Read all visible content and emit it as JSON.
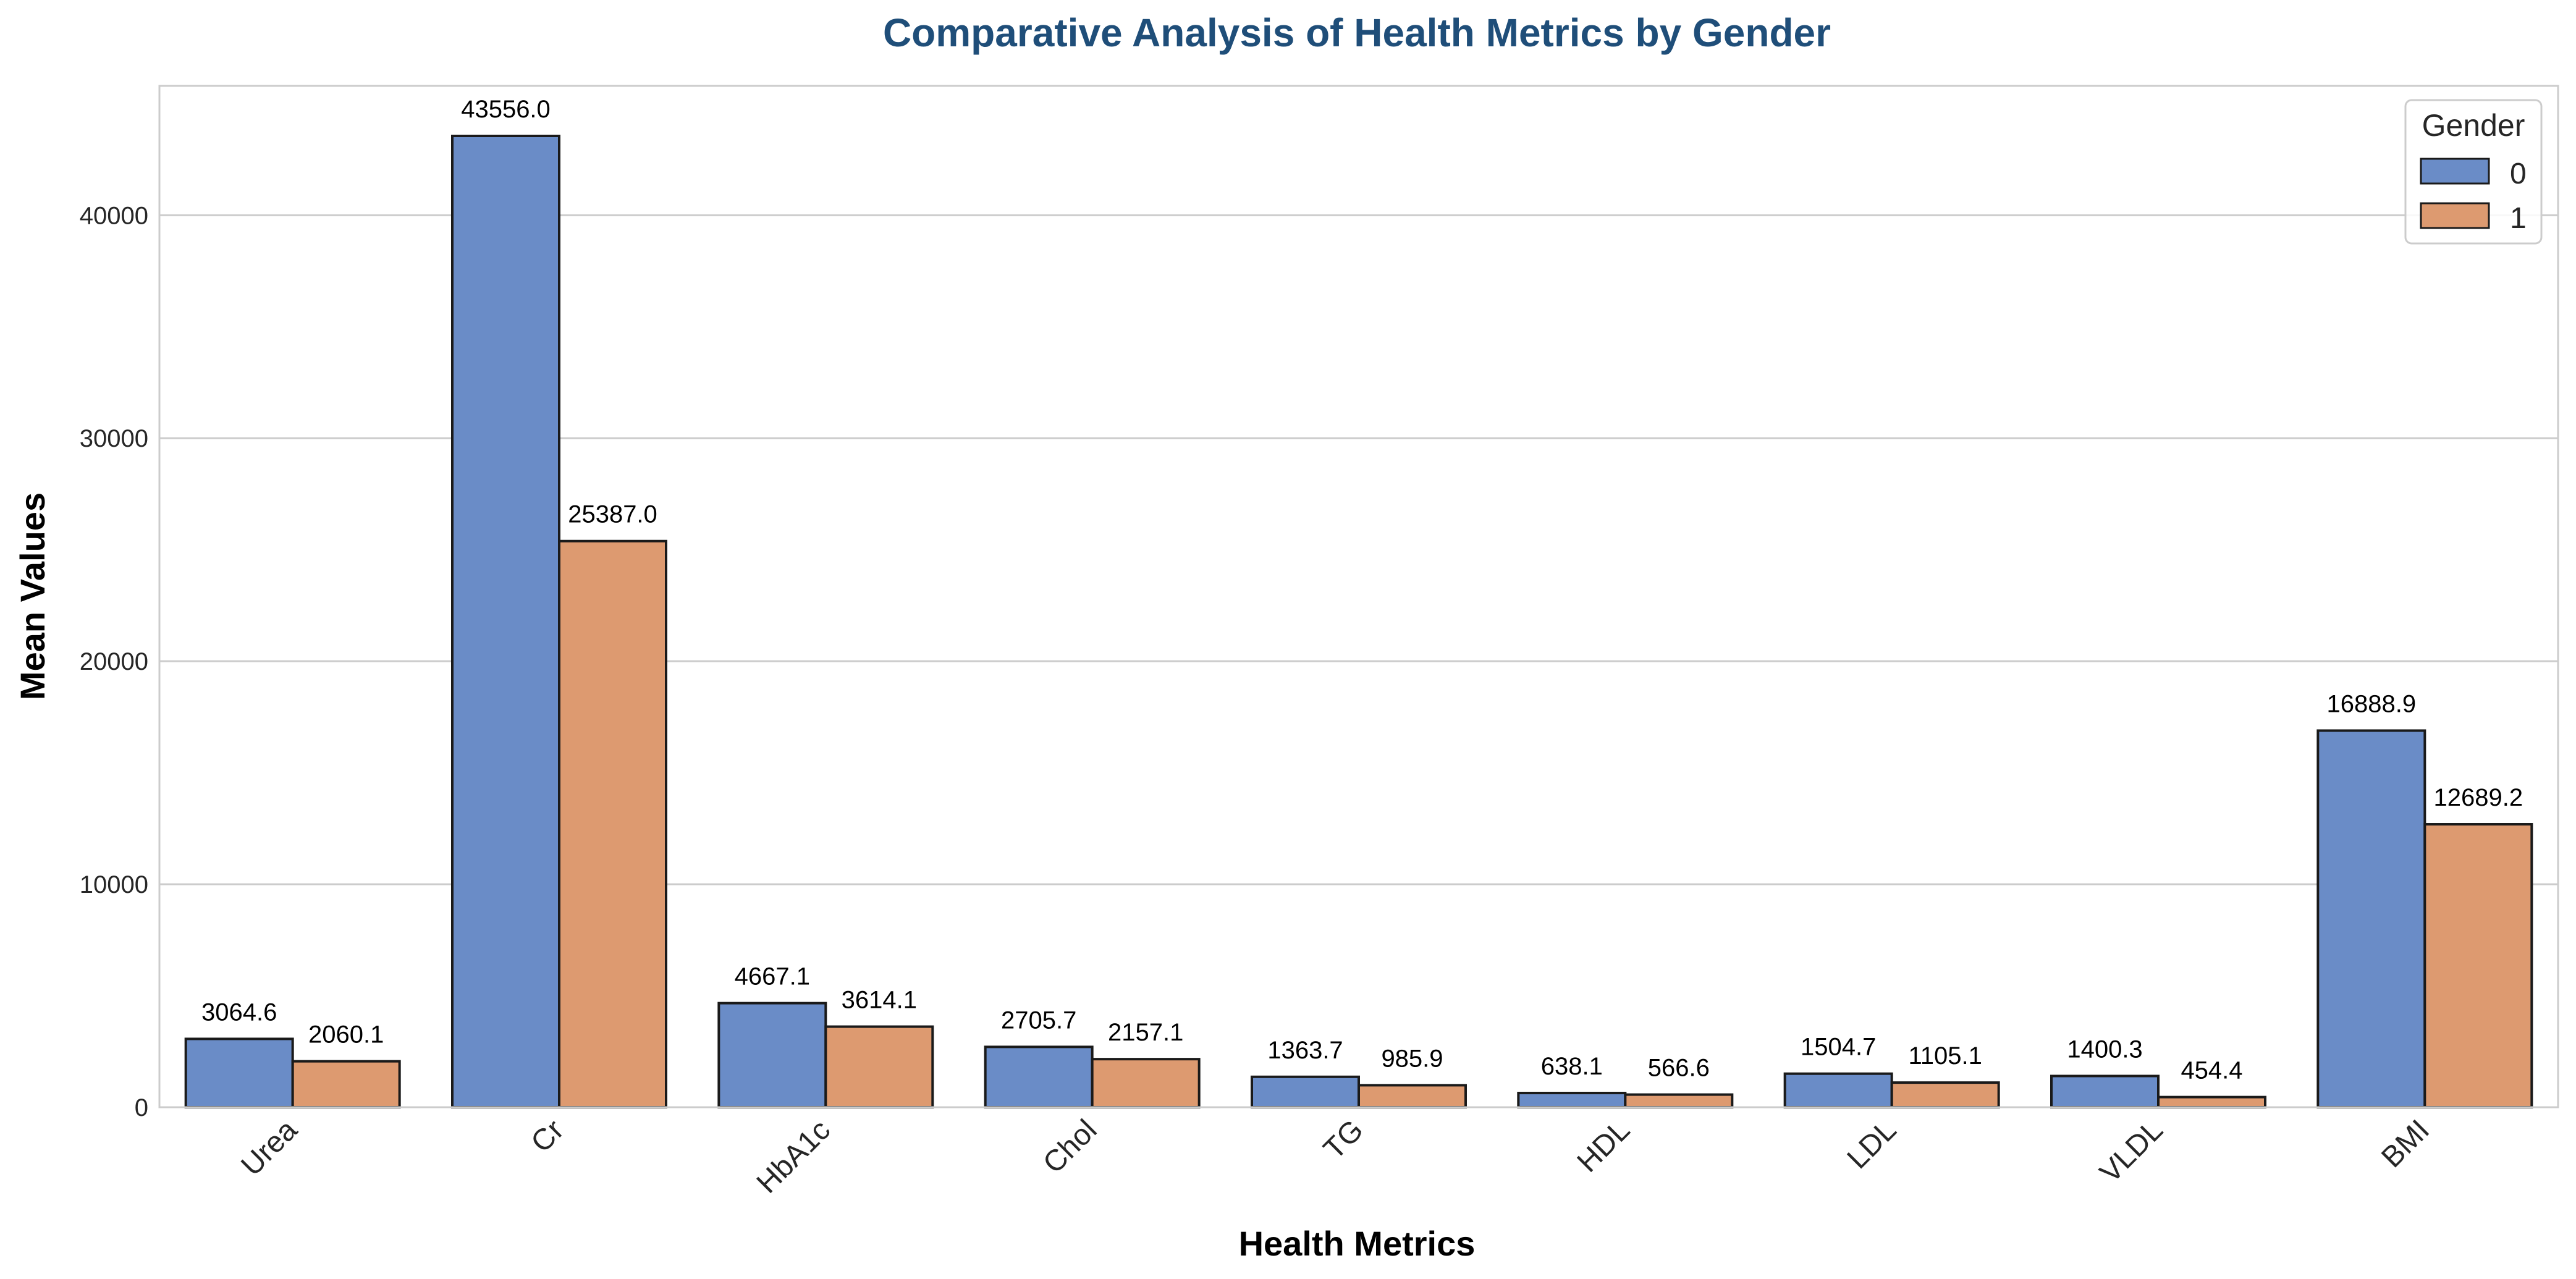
{
  "chart_data": {
    "type": "bar",
    "title": "Comparative Analysis of Health Metrics by Gender",
    "xlabel": "Health Metrics",
    "ylabel": "Mean Values",
    "categories": [
      "Urea",
      "Cr",
      "HbA1c",
      "Chol",
      "TG",
      "HDL",
      "LDL",
      "VLDL",
      "BMI"
    ],
    "series": [
      {
        "name": "0",
        "values": [
          3064.6,
          43556.0,
          4667.1,
          2705.7,
          1363.7,
          638.1,
          1504.7,
          1400.3,
          16888.9
        ],
        "labels": [
          "3064.6",
          "43556.0",
          "4667.1",
          "2705.7",
          "1363.7",
          "638.1",
          "1504.7",
          "1400.3",
          "16888.9"
        ],
        "color": "#6a8cc7"
      },
      {
        "name": "1",
        "values": [
          2060.1,
          25387.0,
          3614.1,
          2157.1,
          985.9,
          566.6,
          1105.1,
          454.4,
          12689.2
        ],
        "labels": [
          "2060.1",
          "25387.0",
          "3614.1",
          "2157.1",
          "985.9",
          "566.6",
          "1105.1",
          "454.4",
          "12689.2"
        ],
        "color": "#dd9a70"
      }
    ],
    "ylim": [
      0,
      45800
    ],
    "yticks": [
      0,
      10000,
      20000,
      30000,
      40000
    ],
    "ytick_labels": [
      "0",
      "10000",
      "20000",
      "30000",
      "40000"
    ],
    "grid": true,
    "legend": {
      "title": "Gender",
      "placement": "top-right"
    },
    "title_color": "#1f4e79"
  }
}
